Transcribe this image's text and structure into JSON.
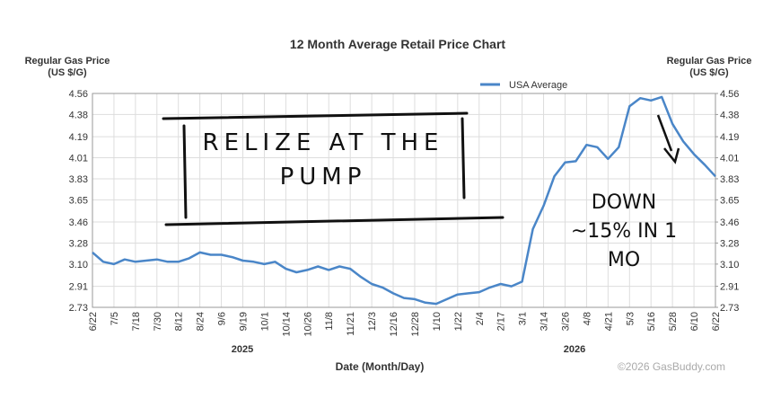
{
  "chart_data": {
    "type": "line",
    "title": "12 Month Average Retail Price Chart",
    "y_label": "Regular Gas Price (US $/G)",
    "y2_label": "Regular Gas Price (US $/G)",
    "x_label": "Date (Month/Day)",
    "year_labels": [
      "2025",
      "2026"
    ],
    "credit": "©2026 GasBuddy.com",
    "categories": [
      "6/22",
      null,
      "7/5",
      null,
      "7/18",
      null,
      "7/30",
      null,
      "8/12",
      null,
      "8/24",
      null,
      "9/6",
      null,
      "9/19",
      null,
      "10/1",
      null,
      "10/14",
      null,
      "10/26",
      null,
      "11/8",
      null,
      "11/21",
      null,
      "12/3",
      null,
      "12/16",
      null,
      "12/28",
      null,
      "1/10",
      null,
      "1/22",
      null,
      "2/4",
      null,
      "2/17",
      null,
      "3/1",
      null,
      "3/14",
      null,
      "3/26",
      null,
      "4/8",
      null,
      "4/21",
      null,
      "5/3",
      null,
      "5/16",
      null,
      "5/28",
      null,
      "6/10",
      null,
      "6/22"
    ],
    "series": [
      {
        "name": "USA Average",
        "color": "#4a86c8",
        "values": [
          3.2,
          3.12,
          3.1,
          3.14,
          3.12,
          3.13,
          3.14,
          3.12,
          3.12,
          3.15,
          3.2,
          3.18,
          3.18,
          3.16,
          3.13,
          3.12,
          3.1,
          3.12,
          3.06,
          3.03,
          3.05,
          3.08,
          3.05,
          3.08,
          3.06,
          2.99,
          2.93,
          2.9,
          2.85,
          2.81,
          2.8,
          2.77,
          2.76,
          2.8,
          2.84,
          2.85,
          2.86,
          2.9,
          2.93,
          2.91,
          2.95,
          3.4,
          3.6,
          3.85,
          3.97,
          3.98,
          4.12,
          4.1,
          4.0,
          4.1,
          4.45,
          4.52,
          4.5,
          4.53,
          4.3,
          4.15,
          4.04,
          3.95,
          3.85
        ]
      }
    ],
    "ylim": [
      2.73,
      4.56
    ],
    "yticks": [
      2.73,
      2.91,
      {
        "value": 3.1,
        "label": "3.10"
      },
      3.28,
      3.46,
      3.65,
      3.83,
      4.01,
      4.19,
      4.38,
      4.56
    ],
    "y2lim": [
      2.73,
      4.56
    ],
    "y2ticks": [
      2.73,
      2.91,
      {
        "value": 3.1,
        "label": "3.10"
      },
      3.28,
      3.46,
      3.65,
      3.83,
      4.01,
      4.19,
      4.38,
      4.56
    ],
    "grid": true,
    "legend": "top-right",
    "annotations": [
      "RELIZE AT THE PUMP",
      "DOWN ~15% IN 1 MO"
    ]
  }
}
